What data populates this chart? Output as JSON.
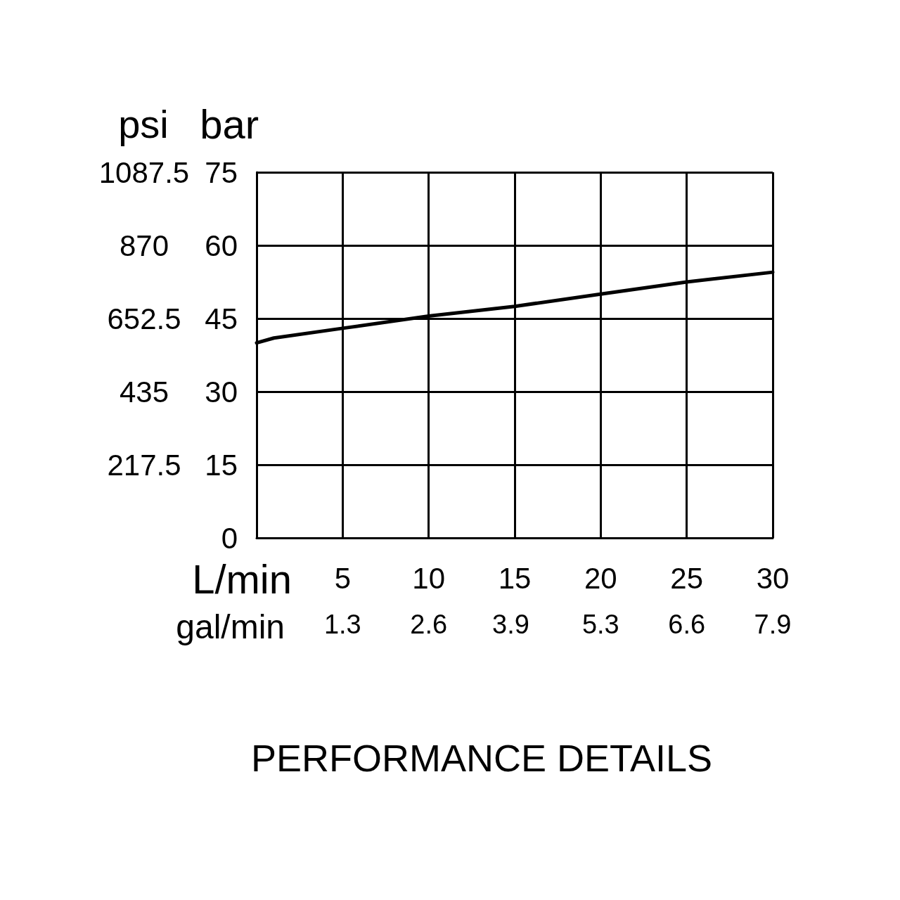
{
  "chart_data": {
    "type": "line",
    "title": "PERFORMANCE DETAILS",
    "xlabel": "L/min",
    "x2label": "gal/min",
    "ylabel": "bar",
    "y2label": "psi",
    "x": [
      0,
      1,
      5,
      10,
      15,
      20,
      25,
      30
    ],
    "series": [
      {
        "color": "#000000",
        "values": [
          40,
          41,
          43,
          45.5,
          47.5,
          50,
          52.5,
          54.5
        ]
      }
    ],
    "xlim": [
      0,
      30
    ],
    "xticks": [
      5,
      10,
      15,
      20,
      25,
      30
    ],
    "x2lim": [
      0,
      7.92
    ],
    "x2ticks": [
      {
        "value": 1.32,
        "label": "1.3"
      },
      {
        "value": 2.64,
        "label": "2.6"
      },
      3.9,
      {
        "value": 5.28,
        "label": "5.3"
      },
      6.6,
      {
        "value": 7.92,
        "label": "7.9"
      }
    ],
    "ylim": [
      0,
      75
    ],
    "yticks": [
      0,
      15,
      30,
      45,
      60,
      75
    ],
    "y2lim": [
      0,
      1087.5
    ],
    "y2ticks": [
      217.5,
      435,
      652.5,
      870,
      1087.5
    ],
    "grid": true,
    "marker": "none",
    "line_style": "solid"
  }
}
